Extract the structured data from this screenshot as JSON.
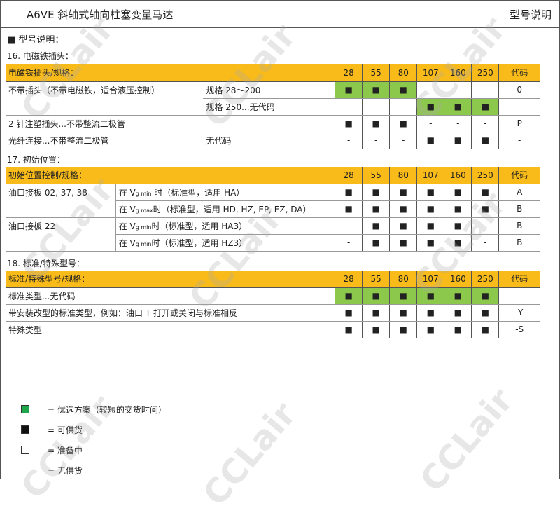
{
  "header": {
    "title": "A6VE 斜轴式轴向柱塞变量马达",
    "right": "型号说明"
  },
  "heading": "■  型号说明：",
  "sizes": [
    "28",
    "55",
    "80",
    "107",
    "160",
    "250"
  ],
  "code_label": "代码",
  "colors": {
    "header": "#f8bb1a",
    "preferred": "#8cc84b"
  },
  "s16": {
    "title": "16. 电磁铁插头：",
    "head": "电磁铁插头/规格：",
    "rows": [
      {
        "a": "不带插头（不带电磁铁，适合液压控制）",
        "b": "规格 28～200",
        "v": [
          "■",
          "■",
          "■",
          "-",
          "-",
          "-"
        ],
        "g": [
          1,
          1,
          1,
          0,
          0,
          0
        ],
        "code": "0"
      },
      {
        "a": "",
        "b": "规格 250...无代码",
        "v": [
          "-",
          "-",
          "-",
          "■",
          "■",
          "■"
        ],
        "g": [
          0,
          0,
          0,
          1,
          1,
          1
        ],
        "code": "-"
      },
      {
        "a": "2 针注塑插头...不带整流二极管",
        "b": "",
        "v": [
          "■",
          "■",
          "■",
          "-",
          "-",
          "-"
        ],
        "g": [
          0,
          0,
          0,
          0,
          0,
          0
        ],
        "code": "P"
      },
      {
        "a": "光纤连接...不带整流二极管",
        "b": "无代码",
        "v": [
          "-",
          "-",
          "-",
          "■",
          "■",
          "■"
        ],
        "g": [
          0,
          0,
          0,
          0,
          0,
          0
        ],
        "code": "-"
      }
    ]
  },
  "s17": {
    "title": "17. 初始位置：",
    "head": "初始位置控制/规格：",
    "rows": [
      {
        "a": "油口接板 02, 37, 38",
        "b1": "在 V",
        "bsub": "g min",
        "b2": " 时（标准型，适用 HA）",
        "v": [
          "■",
          "■",
          "■",
          "■",
          "■",
          "■"
        ],
        "code": "A"
      },
      {
        "a": "",
        "b1": "在 V",
        "bsub": "g max",
        "b2": "时（标准型，适用  HD, HZ, EP, EZ, DA）",
        "v": [
          "■",
          "■",
          "■",
          "■",
          "■",
          "■"
        ],
        "code": "B"
      },
      {
        "a": "油口接板 22",
        "b1": "在 V",
        "bsub": "g min",
        "b2": "时（标准型，适用 HA3）",
        "v": [
          "-",
          "■",
          "■",
          "■",
          "■",
          "-"
        ],
        "code": "B"
      },
      {
        "a": "",
        "b1": "在 V",
        "bsub": "g min",
        "b2": "时（标准型，适用  HZ3）",
        "v": [
          "-",
          "■",
          "■",
          "■",
          "■",
          "-"
        ],
        "code": "B"
      }
    ]
  },
  "s18": {
    "title": "18. 标准/特殊型号：",
    "head": "标准/特殊型号/规格：",
    "rows": [
      {
        "a": "标准类型...无代码",
        "v": [
          "■",
          "■",
          "■",
          "■",
          "■",
          "■"
        ],
        "g": [
          1,
          1,
          1,
          1,
          1,
          1
        ],
        "code": "-"
      },
      {
        "a": "带安装改型的标准类型，例如：油口 T 打开或关闭与标准相反",
        "v": [
          "■",
          "■",
          "■",
          "■",
          "■",
          "■"
        ],
        "g": [
          0,
          0,
          0,
          0,
          0,
          0
        ],
        "code": "-Y"
      },
      {
        "a": "特殊类型",
        "v": [
          "■",
          "■",
          "■",
          "■",
          "■",
          "■"
        ],
        "g": [
          0,
          0,
          0,
          0,
          0,
          0
        ],
        "code": "-S"
      }
    ]
  },
  "legend": [
    {
      "symbol": "green-square",
      "text": "=  优选方案（较短的交货时间）"
    },
    {
      "symbol": "black-square",
      "text": "=  可供货"
    },
    {
      "symbol": "white-square",
      "text": "=  准备中"
    },
    {
      "symbol": "-",
      "text": "=  无供货"
    }
  ],
  "watermark": "CCLair"
}
